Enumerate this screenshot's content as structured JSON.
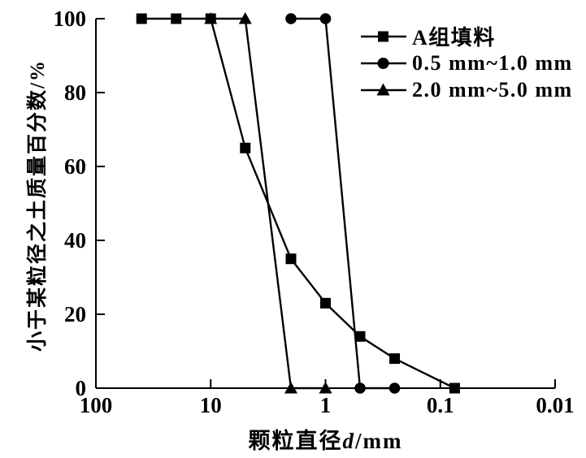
{
  "chart_data": {
    "type": "line",
    "title": "",
    "xlabel": {
      "prefix": "颗粒直径",
      "symbol": "d",
      "suffix": "/mm"
    },
    "ylabel": "小于某粒径之土质量百分数/%",
    "x_scale": "log-reversed",
    "x_range": [
      100,
      0.01
    ],
    "y_range": [
      0,
      100
    ],
    "x_ticks": [
      100,
      10,
      1,
      0.1,
      0.01
    ],
    "x_tick_labels": [
      "100",
      "10",
      "1",
      "0.1",
      "0.01"
    ],
    "y_ticks": [
      0,
      20,
      40,
      60,
      80,
      100
    ],
    "grid": false,
    "legend_position": "top-right",
    "axis_color": "#000000",
    "series": [
      {
        "name": "A组填料",
        "marker": "square",
        "color": "#000000",
        "points": [
          [
            40,
            100
          ],
          [
            20,
            100
          ],
          [
            10,
            100
          ],
          [
            5,
            65
          ],
          [
            2,
            35
          ],
          [
            1,
            23
          ],
          [
            0.5,
            14
          ],
          [
            0.25,
            8
          ],
          [
            0.075,
            0
          ]
        ]
      },
      {
        "name": "0.5 mm~1.0 mm",
        "marker": "circle",
        "color": "#000000",
        "points": [
          [
            2,
            100
          ],
          [
            1,
            100
          ],
          [
            0.5,
            0
          ],
          [
            0.25,
            0
          ]
        ]
      },
      {
        "name": "2.0 mm~5.0 mm",
        "marker": "triangle",
        "color": "#000000",
        "points": [
          [
            10,
            100
          ],
          [
            5,
            100
          ],
          [
            2,
            0
          ],
          [
            1,
            0
          ]
        ]
      }
    ]
  }
}
